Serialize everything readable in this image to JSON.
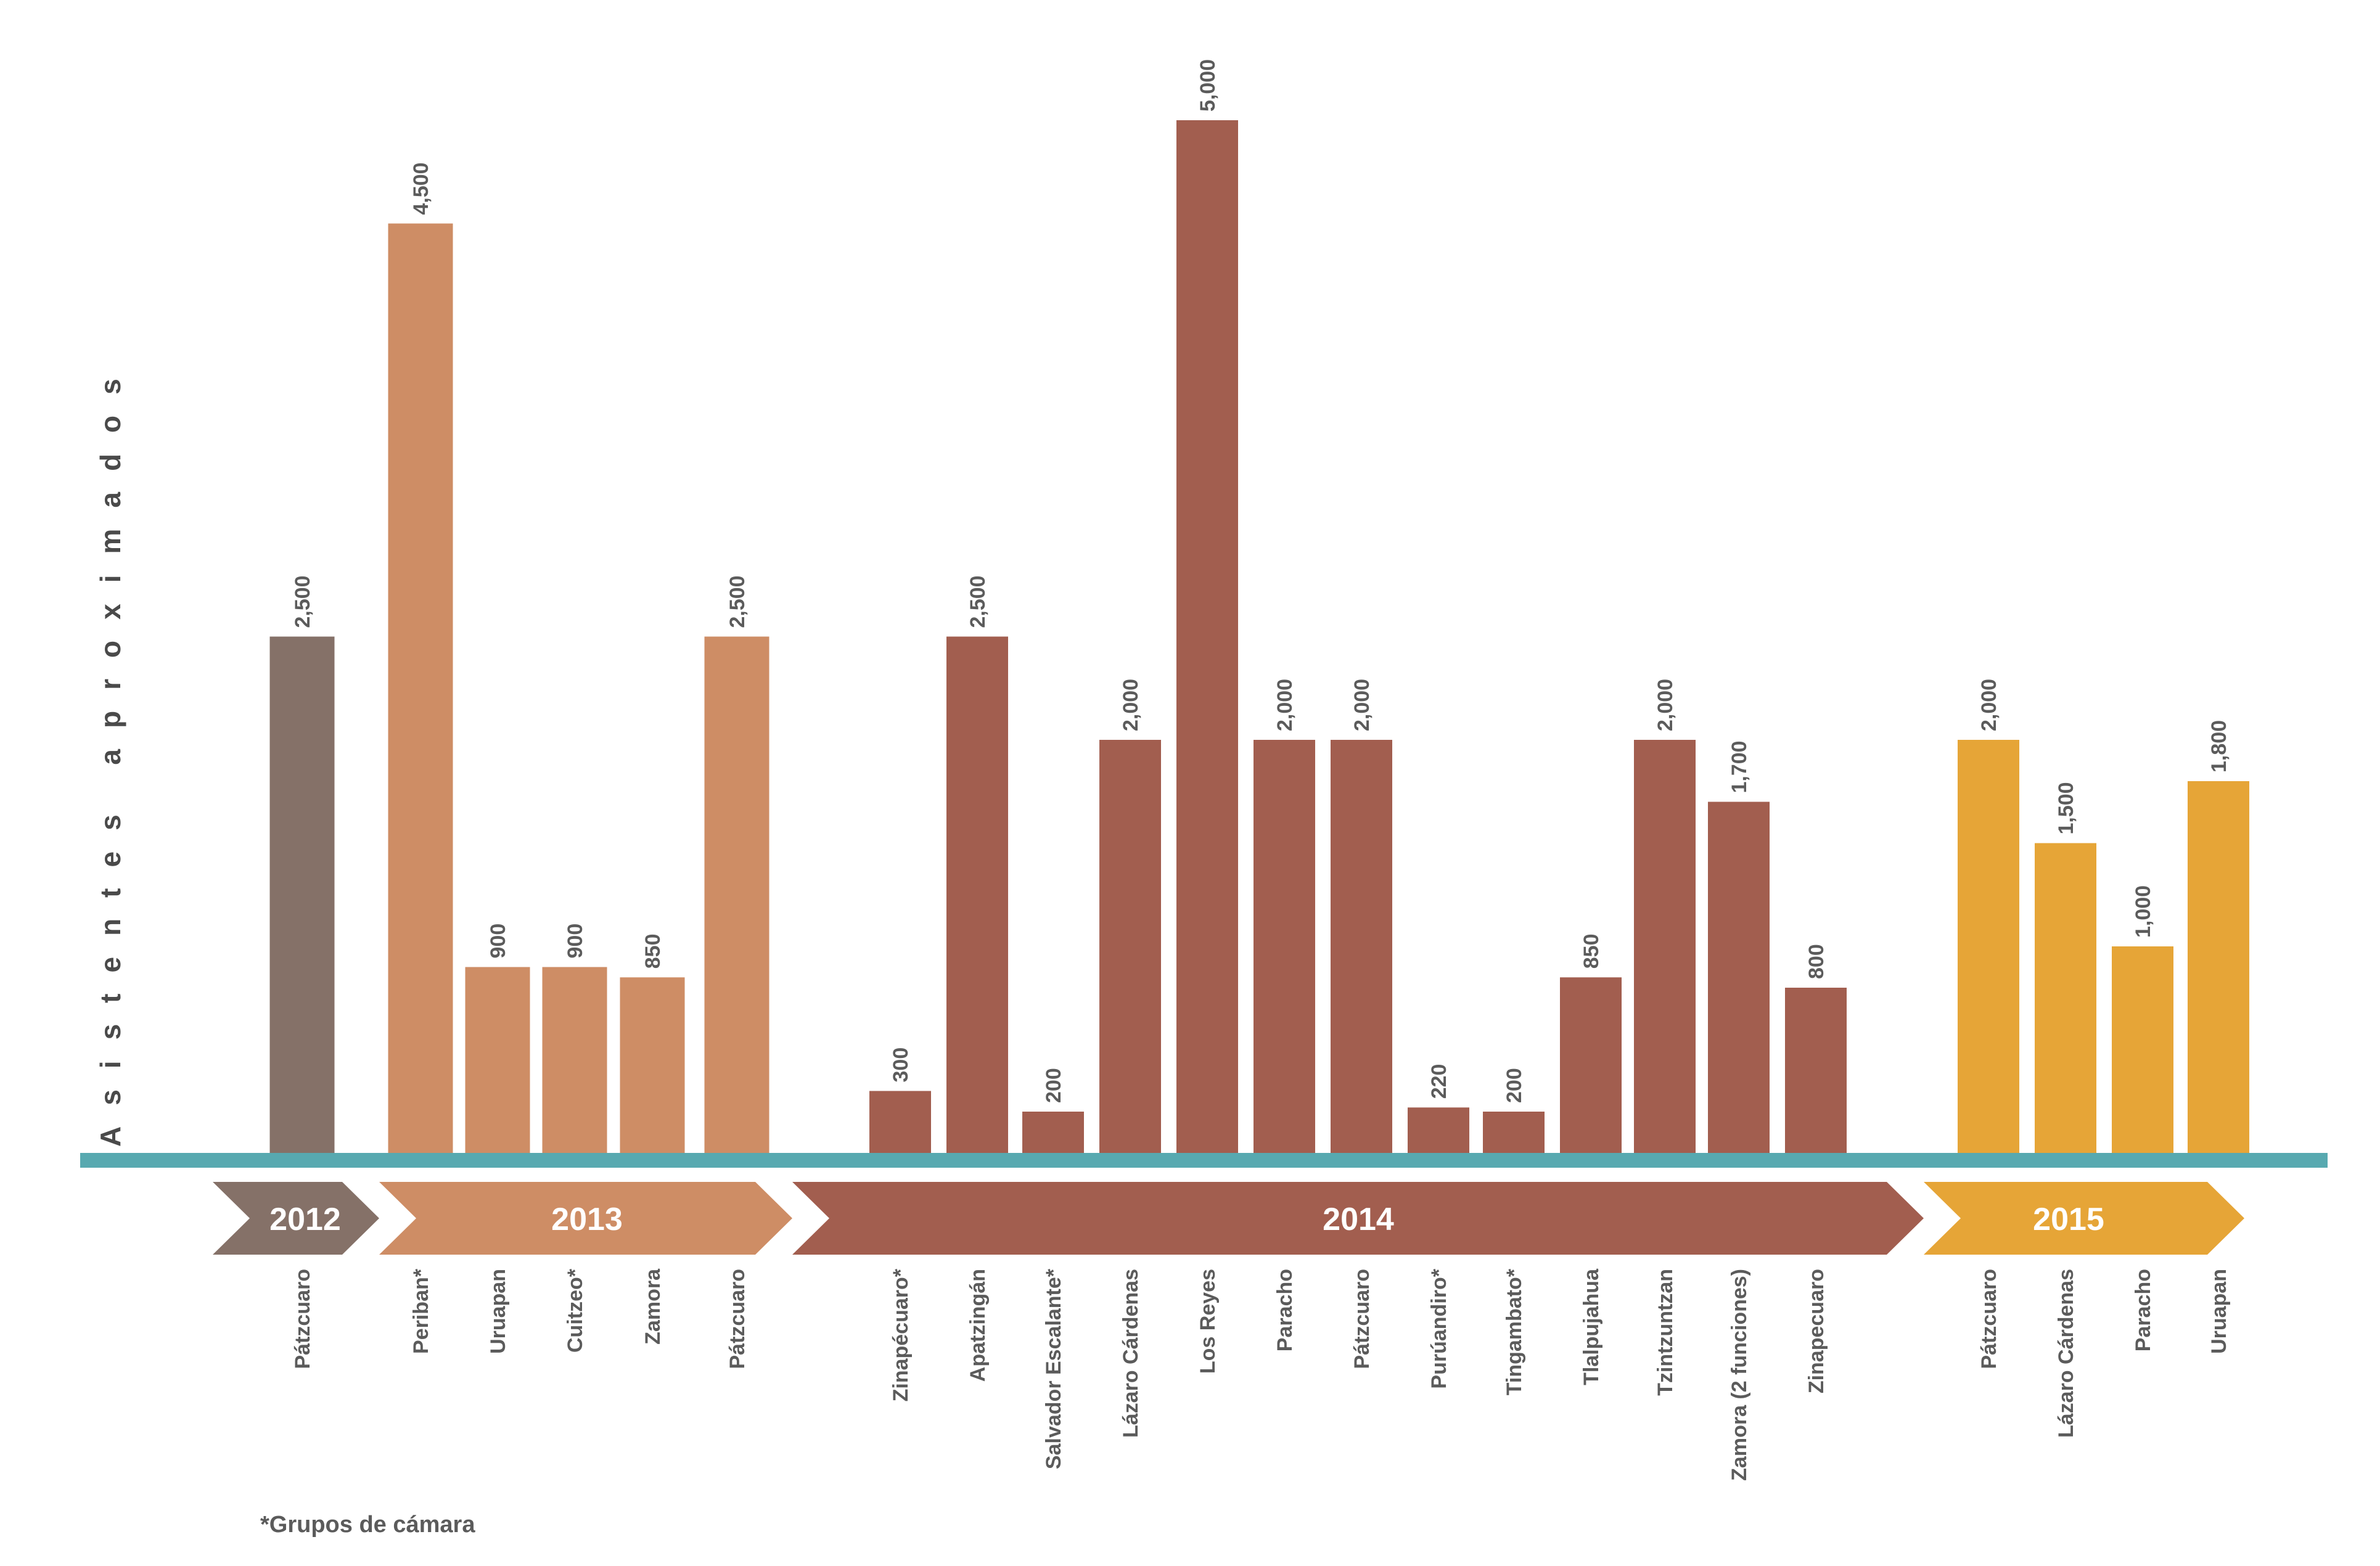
{
  "chart_data": {
    "type": "bar",
    "ylabel": "Asistentes aproximados",
    "footnote": "*Grupos de cámara",
    "groups": [
      {
        "year": "2012",
        "color": "#857168",
        "bars": [
          {
            "label": "Pátzcuaro",
            "value": 2500,
            "value_label": "2,500"
          }
        ]
      },
      {
        "year": "2013",
        "color": "#ce8d65",
        "bars": [
          {
            "label": "Periban*",
            "value": 4500,
            "value_label": "4,500"
          },
          {
            "label": "Uruapan",
            "value": 900,
            "value_label": "900"
          },
          {
            "label": "Cuitzeo*",
            "value": 900,
            "value_label": "900"
          },
          {
            "label": "Zamora",
            "value": 850,
            "value_label": "850"
          },
          {
            "label": "Pátzcuaro",
            "value": 2500,
            "value_label": "2,500"
          }
        ]
      },
      {
        "year": "2014",
        "color": "#a25e4f",
        "bars": [
          {
            "label": "Zinapécuaro*",
            "value": 300,
            "value_label": "300"
          },
          {
            "label": "Apatzingán",
            "value": 2500,
            "value_label": "2,500"
          },
          {
            "label": "Salvador Escalante*",
            "value": 200,
            "value_label": "200"
          },
          {
            "label": "Lázaro Cárdenas",
            "value": 2000,
            "value_label": "2,000"
          },
          {
            "label": "Los Reyes",
            "value": 5000,
            "value_label": "5,000"
          },
          {
            "label": "Paracho",
            "value": 2000,
            "value_label": "2,000"
          },
          {
            "label": "Pátzcuaro",
            "value": 2000,
            "value_label": "2,000"
          },
          {
            "label": "Purúandiro*",
            "value": 220,
            "value_label": "220"
          },
          {
            "label": "Tingambato*",
            "value": 200,
            "value_label": "200"
          },
          {
            "label": "Tlalpujahua",
            "value": 850,
            "value_label": "850"
          },
          {
            "label": "Tzintzuntzan",
            "value": 2000,
            "value_label": "2,000"
          },
          {
            "label": "Zamora (2 funciones)",
            "value": 1700,
            "value_label": "1,700"
          },
          {
            "label": "Zinapecuaro",
            "value": 800,
            "value_label": "800"
          }
        ]
      },
      {
        "year": "2015",
        "color": "#e6a537",
        "bars": [
          {
            "label": "Pátzcuaro",
            "value": 2000,
            "value_label": "2,000"
          },
          {
            "label": "Lázaro Cárdenas",
            "value": 1500,
            "value_label": "1,500"
          },
          {
            "label": "Paracho",
            "value": 1000,
            "value_label": "1,000"
          },
          {
            "label": "Uruapan",
            "value": 1800,
            "value_label": "1,800"
          }
        ]
      }
    ],
    "ylim": [
      0,
      5000
    ],
    "axis_color": "#57a9b0"
  }
}
